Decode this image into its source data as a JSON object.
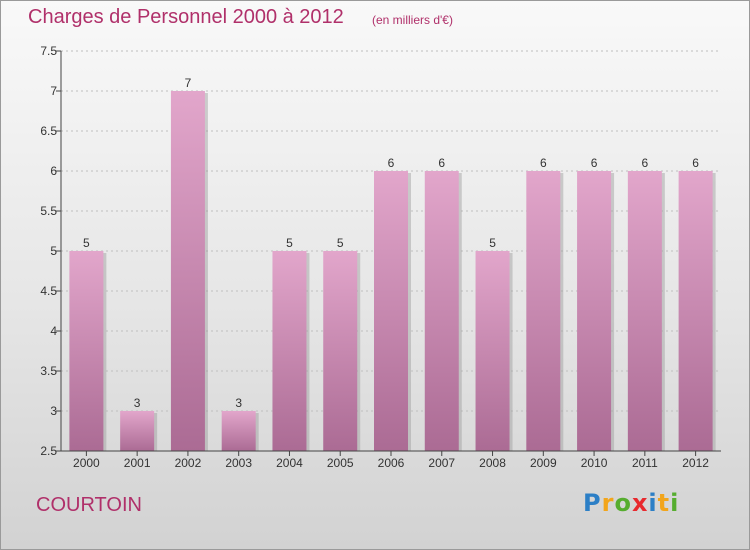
{
  "title": "Charges de Personnel 2000 à 2012",
  "subtitle": "(en milliers d'€)",
  "commune": "COURTOIN",
  "logo": {
    "text": "Proxiti",
    "letters": [
      {
        "char": "P",
        "color": "#2c7fc6"
      },
      {
        "char": "r",
        "color": "#f2a51b"
      },
      {
        "char": "o",
        "color": "#56ad2f"
      },
      {
        "char": "x",
        "color": "#e8292e"
      },
      {
        "char": "i",
        "color": "#2c7fc6"
      },
      {
        "char": "t",
        "color": "#f2a51b"
      },
      {
        "char": "i",
        "color": "#56ad2f"
      }
    ]
  },
  "colors": {
    "title": "#b0306a",
    "bar_top": "#e2a6cb",
    "bar_bottom": "#ab6b94",
    "axis": "#444444",
    "grid": "#bfbfbf"
  },
  "chart_data": {
    "type": "bar",
    "title": "Charges de Personnel 2000 à 2012",
    "subtitle": "(en milliers d'€)",
    "categories": [
      "2000",
      "2001",
      "2002",
      "2003",
      "2004",
      "2005",
      "2006",
      "2007",
      "2008",
      "2009",
      "2010",
      "2011",
      "2012"
    ],
    "values": [
      5,
      3,
      7,
      3,
      5,
      5,
      6,
      6,
      5,
      6,
      6,
      6,
      6
    ],
    "data_labels": [
      "5",
      "3",
      "7",
      "3",
      "5",
      "5",
      "6",
      "6",
      "5",
      "6",
      "6",
      "6",
      "6"
    ],
    "ylim": [
      2.5,
      7.5
    ],
    "yticks": [
      2.5,
      3,
      3.5,
      4,
      4.5,
      5,
      5.5,
      6,
      6.5,
      7,
      7.5
    ],
    "ytick_labels": [
      "2.5",
      "3",
      "3.5",
      "4",
      "4.5",
      "5",
      "5.5",
      "6",
      "6.5",
      "7",
      "7.5"
    ],
    "grid": "horizontal dotted",
    "legend": "none"
  }
}
